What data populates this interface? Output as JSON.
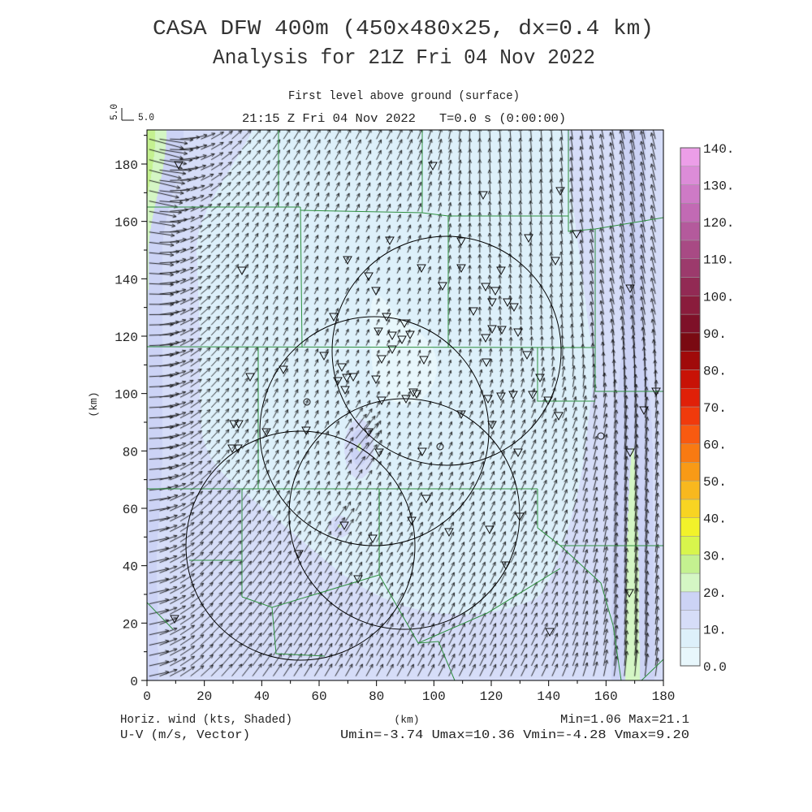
{
  "title": {
    "line1": "CASA DFW 400m (450x480x25, dx=0.4 km)",
    "line2": "Analysis for 21Z Fri 04 Nov 2022"
  },
  "header": {
    "level": "First level above ground (surface)",
    "valid_time": "21:15 Z Fri 04 Nov 2022",
    "elapsed": "T=0.0 s (0:00:00)"
  },
  "reference_vector": {
    "side_label": "5.0",
    "label": "5.0",
    "value_mps": 5.0
  },
  "axes": {
    "x": {
      "label": "(km)",
      "range": [
        0,
        180
      ],
      "ticks": [
        "0",
        "20",
        "40",
        "60",
        "80",
        "100",
        "120",
        "140",
        "160",
        "180"
      ]
    },
    "y": {
      "label": "(km)",
      "range": [
        0,
        192
      ],
      "ticks": [
        "0",
        "20",
        "40",
        "60",
        "80",
        "100",
        "120",
        "140",
        "160",
        "180"
      ]
    }
  },
  "colorbar": {
    "labels": [
      "0.0",
      "10.",
      "20.",
      "30.",
      "40.",
      "50.",
      "60.",
      "70.",
      "80.",
      "90.",
      "100.",
      "110.",
      "120.",
      "130.",
      "140."
    ],
    "colors": [
      "#e8f7fc",
      "#ddf0fa",
      "#d6ddf8",
      "#ccd3f5",
      "#d4f6c4",
      "#c4f190",
      "#d8f54c",
      "#f2f22a",
      "#f8d422",
      "#f8b81e",
      "#f89a16",
      "#f87a12",
      "#f85a10",
      "#f03a0c",
      "#e02008",
      "#c81206",
      "#a00a0a",
      "#7a0a12",
      "#7e1028",
      "#8a1c3c",
      "#922a54",
      "#9c3a6c",
      "#a84a84",
      "#b45a9c",
      "#c26ab4",
      "#ce7ac6",
      "#dc8cd8",
      "#ec9ee8"
    ]
  },
  "footer": {
    "shaded_field": "Horiz. wind (kts, Shaded)",
    "vector_field": "U-V (m/s, Vector)",
    "minmax": "Min=1.06 Max=21.1",
    "uv_range": "Umin=-3.74 Umax=10.36 Vmin=-4.28 Vmax=9.20"
  },
  "colors": {
    "text": "#222222",
    "frame": "#000000",
    "county_boundary": "#2f8f3f",
    "range_ring": "#000000",
    "vectors": "#111111",
    "station_marker": "#111111"
  }
}
